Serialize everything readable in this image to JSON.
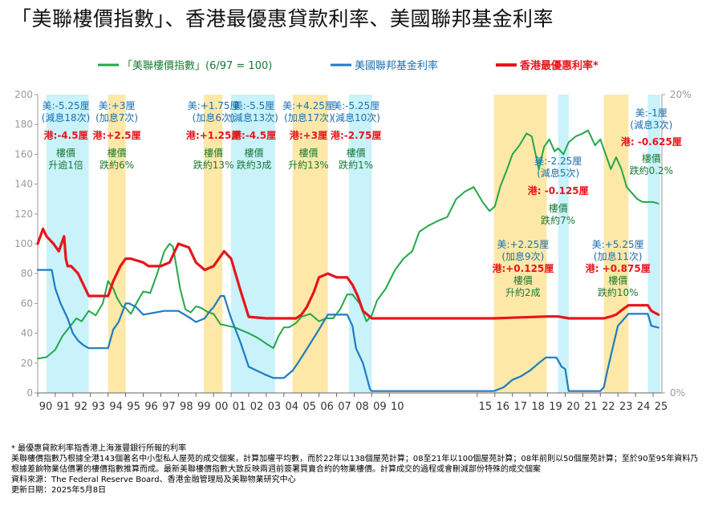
{
  "title": "「美聯樓價指數」、香港最優惠貸款利率、美國聯邦基金利率",
  "colors": {
    "index": "#22a84a",
    "fed": "#1f7bc2",
    "prime": "#e8141c",
    "cut_band": "#c9f2fb",
    "hike_band": "#fde8a8",
    "index_text": "#1a7a34",
    "fed_text": "#1a6fb0",
    "prime_text": "#e8141c"
  },
  "chart_data": {
    "type": "line",
    "legend": [
      {
        "key": "index",
        "label": "「美聯樓價指數」(6/97 = 100)"
      },
      {
        "key": "fed",
        "label": "美國聯邦基金利率"
      },
      {
        "key": "prime",
        "label": "香港最優惠利率*"
      }
    ],
    "x_ticks": [
      "90",
      "91",
      "92",
      "93",
      "94",
      "95",
      "96",
      "97",
      "98",
      "99",
      "00",
      "01",
      "02",
      "03",
      "04",
      "05",
      "06",
      "07",
      "08",
      "09",
      "10",
      "15",
      "16",
      "17",
      "18",
      "19",
      "20",
      "21",
      "22",
      "23",
      "24",
      "25"
    ],
    "x_tick_years": [
      1990,
      1991,
      1992,
      1993,
      1994,
      1995,
      1996,
      1997,
      1998,
      1999,
      2000,
      2001,
      2002,
      2003,
      2004,
      2005,
      2006,
      2007,
      2008,
      2009,
      2010,
      2015,
      2016,
      2017,
      2018,
      2019,
      2020,
      2021,
      2022,
      2023,
      2024,
      2025
    ],
    "x_range": [
      1990,
      2025.5
    ],
    "y_left": {
      "range": [
        0,
        200
      ],
      "ticks": [
        0,
        20,
        40,
        60,
        80,
        100,
        120,
        140,
        160,
        180,
        200
      ]
    },
    "y_right": {
      "range": [
        0,
        20
      ],
      "ticks": [
        "0%",
        "20%"
      ],
      "tick_values": [
        0,
        20
      ]
    },
    "bands": [
      {
        "type": "cut",
        "start": 1990.5,
        "end": 1992.9
      },
      {
        "type": "hike",
        "start": 1994.0,
        "end": 1995.0
      },
      {
        "type": "hike",
        "start": 1999.45,
        "end": 2000.5
      },
      {
        "type": "cut",
        "start": 2001.0,
        "end": 2003.5
      },
      {
        "type": "hike",
        "start": 2004.5,
        "end": 2006.5
      },
      {
        "type": "cut",
        "start": 2007.7,
        "end": 2009.0
      },
      {
        "type": "hike",
        "start": 2015.95,
        "end": 2018.95
      },
      {
        "type": "cut",
        "start": 2019.6,
        "end": 2020.2
      },
      {
        "type": "hike",
        "start": 2022.2,
        "end": 2023.6
      },
      {
        "type": "cut",
        "start": 2024.7,
        "end": 2025.4
      }
    ],
    "series": [
      {
        "key": "index",
        "name": "「美聯樓價指數」(6/97 = 100)",
        "axis": "left",
        "x": [
          1990,
          1990.5,
          1991,
          1991.4,
          1991.8,
          1992.2,
          1992.5,
          1992.9,
          1993.3,
          1993.7,
          1994.0,
          1994.3,
          1994.5,
          1994.8,
          1995.0,
          1995.3,
          1995.7,
          1996.0,
          1996.4,
          1996.8,
          1997.2,
          1997.5,
          1997.7,
          1997.9,
          1998.1,
          1998.4,
          1998.7,
          1999.0,
          1999.3,
          1999.7,
          2000.0,
          2000.4,
          2000.8,
          2001.2,
          2001.6,
          2002.0,
          2002.5,
          2003.0,
          2003.4,
          2003.7,
          2004.0,
          2004.3,
          2004.7,
          2005.0,
          2005.5,
          2006.0,
          2006.4,
          2006.8,
          2007.2,
          2007.6,
          2007.9,
          2008.3,
          2008.7,
          2009.0,
          2009.3,
          2009.8,
          2010.3,
          2010.8,
          2011.3,
          2011.7,
          2012.2,
          2012.7,
          2013.3,
          2013.8,
          2014.3,
          2014.8,
          2015.3,
          2015.7,
          2016.0,
          2016.3,
          2016.7,
          2017.0,
          2017.4,
          2017.8,
          2018.1,
          2018.5,
          2018.8,
          2019.1,
          2019.4,
          2019.6,
          2019.9,
          2020.2,
          2020.6,
          2021.0,
          2021.3,
          2021.7,
          2022.0,
          2022.3,
          2022.6,
          2022.9,
          2023.2,
          2023.5,
          2023.8,
          2024.1,
          2024.4,
          2024.7,
          2025.0,
          2025.3
        ],
        "values": [
          23,
          24,
          29,
          38,
          44,
          50,
          48,
          55,
          52,
          60,
          75,
          70,
          64,
          58,
          57,
          53,
          62,
          68,
          67,
          80,
          95,
          100,
          98,
          84,
          70,
          56,
          54,
          58,
          57,
          54,
          53,
          46,
          45,
          44,
          42,
          40,
          37,
          33,
          30,
          38,
          44,
          44,
          47,
          51,
          53,
          48,
          50,
          50,
          56,
          66,
          66,
          60,
          48,
          52,
          62,
          70,
          82,
          90,
          95,
          108,
          112,
          115,
          118,
          130,
          135,
          138,
          128,
          122,
          125,
          138,
          150,
          160,
          166,
          174,
          172,
          150,
          165,
          170,
          162,
          164,
          160,
          168,
          172,
          174,
          176,
          166,
          170,
          160,
          150,
          158,
          150,
          138,
          134,
          130,
          128,
          128,
          128,
          127
        ],
        "label_positions": []
      },
      {
        "key": "fed",
        "name": "美國聯邦基金利率",
        "axis": "right",
        "x": [
          1990,
          1990.8,
          1991.0,
          1991.3,
          1991.7,
          1992.0,
          1992.3,
          1992.6,
          1992.9,
          1993.9,
          1994.0,
          1994.3,
          1994.6,
          1995.0,
          1995.2,
          1995.6,
          1996.0,
          1997.2,
          1998.0,
          1998.7,
          1999.0,
          1999.5,
          1999.8,
          2000.0,
          2000.4,
          2000.6,
          2001.0,
          2001.5,
          2002.0,
          2002.9,
          2003.4,
          2004.0,
          2004.5,
          2004.8,
          2005.2,
          2005.6,
          2006.0,
          2006.5,
          2007.0,
          2007.6,
          2007.9,
          2008.1,
          2008.5,
          2008.9,
          2009.0,
          2015.95,
          2016.5,
          2017.0,
          2017.5,
          2018.0,
          2018.5,
          2018.9,
          2019.5,
          2019.8,
          2020.0,
          2020.2,
          2021.0,
          2022.0,
          2022.2,
          2022.4,
          2022.7,
          2023.0,
          2023.6,
          2024.7,
          2024.9,
          2025.3
        ],
        "values": [
          8.25,
          8.25,
          7.0,
          6.0,
          5.0,
          4.0,
          3.5,
          3.2,
          3.0,
          3.0,
          3.0,
          4.25,
          4.75,
          6.0,
          6.0,
          5.75,
          5.25,
          5.5,
          5.5,
          5.0,
          4.75,
          5.0,
          5.5,
          5.75,
          6.5,
          6.5,
          5.0,
          3.5,
          1.75,
          1.25,
          1.0,
          1.0,
          1.5,
          2.0,
          2.75,
          3.5,
          4.25,
          5.25,
          5.25,
          5.25,
          4.5,
          3.0,
          2.0,
          0.25,
          0.125,
          0.125,
          0.375,
          0.875,
          1.125,
          1.5,
          2.0,
          2.375,
          2.375,
          1.75,
          1.6,
          0.125,
          0.125,
          0.125,
          0.375,
          1.5,
          3.0,
          4.5,
          5.3,
          5.3,
          4.5,
          4.375
        ]
      },
      {
        "key": "prime",
        "name": "香港最優惠利率*",
        "axis": "right",
        "x": [
          1990,
          1990.3,
          1990.5,
          1990.9,
          1991.2,
          1991.5,
          1991.6,
          1991.7,
          1991.9,
          1992.3,
          1992.9,
          1993.9,
          1994.0,
          1994.3,
          1994.7,
          1995.0,
          1995.3,
          1996.0,
          1996.3,
          1997.0,
          1997.5,
          1998.0,
          1998.6,
          1999.0,
          1999.5,
          2000.0,
          2000.6,
          2001.0,
          2001.5,
          2002.0,
          2003.0,
          2004.0,
          2004.7,
          2005.0,
          2005.3,
          2005.7,
          2006.0,
          2006.5,
          2007.0,
          2007.6,
          2007.9,
          2008.2,
          2008.5,
          2009.0,
          2015.95,
          2018.95,
          2019.6,
          2020.2,
          2022.2,
          2022.6,
          2022.9,
          2023.3,
          2023.6,
          2024.7,
          2024.9,
          2025.3
        ],
        "values": [
          10.0,
          11.0,
          10.5,
          10.0,
          9.5,
          10.5,
          9.0,
          8.5,
          8.5,
          8.0,
          6.5,
          6.5,
          6.5,
          7.5,
          8.5,
          9.0,
          9.0,
          8.75,
          8.5,
          8.5,
          8.75,
          10.0,
          9.75,
          8.75,
          8.25,
          8.5,
          9.5,
          9.0,
          7.0,
          5.1,
          5.0,
          5.0,
          5.0,
          5.25,
          5.75,
          6.75,
          7.75,
          8.0,
          7.75,
          7.75,
          7.25,
          6.5,
          5.5,
          5.0,
          5.0,
          5.125,
          5.125,
          5.0,
          5.0,
          5.125,
          5.25,
          5.625,
          5.875,
          5.875,
          5.5,
          5.25
        ]
      }
    ],
    "annotations": [
      {
        "year": 1991.6,
        "top": 124,
        "lines": [
          {
            "text": "美:-5.25厘",
            "color": "fed"
          },
          {
            "text": "(減息18次)",
            "color": "fed"
          },
          {
            "text": "港:-4.5厘",
            "color": "prime",
            "gap": 7
          },
          {
            "text": "樓價",
            "color": "index",
            "gap": 7
          },
          {
            "text": "升逾1倍",
            "color": "index"
          }
        ]
      },
      {
        "year": 1994.5,
        "top": 124,
        "lines": [
          {
            "text": "美:+3厘",
            "color": "fed"
          },
          {
            "text": "(加息7次)",
            "color": "fed"
          },
          {
            "text": "港:+2.5厘",
            "color": "prime",
            "gap": 7
          },
          {
            "text": "樓價",
            "color": "index",
            "gap": 7
          },
          {
            "text": "跌約6%",
            "color": "index"
          }
        ]
      },
      {
        "year": 2000.0,
        "top": 124,
        "lines": [
          {
            "text": "美:+1.75厘",
            "color": "fed"
          },
          {
            "text": "(加息6次)",
            "color": "fed"
          },
          {
            "text": "港:+1.25厘",
            "color": "prime",
            "gap": 7
          },
          {
            "text": "樓價",
            "color": "index",
            "gap": 7
          },
          {
            "text": "跌約13%",
            "color": "index"
          }
        ]
      },
      {
        "year": 2002.3,
        "top": 124,
        "lines": [
          {
            "text": "美:-5.5厘",
            "color": "fed"
          },
          {
            "text": "(減息13次)",
            "color": "fed"
          },
          {
            "text": "港:-4.5厘",
            "color": "prime",
            "gap": 7
          },
          {
            "text": "樓價",
            "color": "index",
            "gap": 7
          },
          {
            "text": "跌約3成",
            "color": "index"
          }
        ]
      },
      {
        "year": 2005.4,
        "top": 124,
        "lines": [
          {
            "text": "美:+4.25厘",
            "color": "fed"
          },
          {
            "text": "(加息17次)",
            "color": "fed"
          },
          {
            "text": "港:+3厘",
            "color": "prime",
            "gap": 7
          },
          {
            "text": "樓價",
            "color": "index",
            "gap": 7
          },
          {
            "text": "升約13%",
            "color": "index"
          }
        ]
      },
      {
        "year": 2008.1,
        "top": 124,
        "lines": [
          {
            "text": "美:-5.25厘",
            "color": "fed"
          },
          {
            "text": "(減息10次)",
            "color": "fed"
          },
          {
            "text": "港:-2.75厘",
            "color": "prime",
            "gap": 7
          },
          {
            "text": "樓價",
            "color": "index",
            "gap": 7
          },
          {
            "text": "跌約1%",
            "color": "index"
          }
        ]
      },
      {
        "year": 2017.6,
        "top": 297,
        "lines": [
          {
            "text": "美:+2.25厘",
            "color": "fed"
          },
          {
            "text": "(加息9次)",
            "color": "fed"
          },
          {
            "text": "港:+0.125厘",
            "color": "prime"
          },
          {
            "text": "樓價",
            "color": "index"
          },
          {
            "text": "升約2成",
            "color": "index"
          }
        ]
      },
      {
        "year": 2019.6,
        "top": 193,
        "lines": [
          {
            "text": "美:-2.25厘",
            "color": "fed"
          },
          {
            "text": "(減息5次)",
            "color": "fed"
          },
          {
            "text": "港: -0.125厘",
            "color": "prime",
            "gap": 7
          },
          {
            "text": "樓價",
            "color": "index",
            "gap": 7
          },
          {
            "text": "跌約7%",
            "color": "index"
          }
        ]
      },
      {
        "year": 2023.0,
        "top": 297,
        "lines": [
          {
            "text": "美:+5.25厘",
            "color": "fed"
          },
          {
            "text": "(加息11次)",
            "color": "fed"
          },
          {
            "text": "港: +0.875厘",
            "color": "prime"
          },
          {
            "text": "樓價",
            "color": "index"
          },
          {
            "text": "跌約10%",
            "color": "index"
          }
        ]
      },
      {
        "year": 2024.9,
        "top": 133,
        "lines": [
          {
            "text": "美:-1厘",
            "color": "fed"
          },
          {
            "text": "(減息3次)",
            "color": "fed"
          },
          {
            "text": "港: -0.625厘",
            "color": "prime",
            "gap": 6
          },
          {
            "text": "樓價",
            "color": "index",
            "gap": 6
          },
          {
            "text": "跌約0.2%",
            "color": "index"
          }
        ]
      }
    ]
  },
  "footnotes": [
    "* 最優惠貸款利率指香港上海滙豐銀行所報的利率",
    "美聯樓價指數乃根據全港143個著名中小型私人屋苑的成交個案，計算加權平均數，而於22年以138個屋苑計算；08至21年以100個屋苑計算；08年前則以50個屋苑計算；至於90至95年資料乃根據差餉物業估價署的樓價指數推算而成。最新美聯樓價指數大致反映兩週前簽署買賣合約的物業樓價。計算成交的過程或會刪減部份特殊的成交個案",
    "資料來源：The Federal Reserve Board、香港金融管理局及美聯物業研究中心",
    "更新日期：2025年5月8日"
  ]
}
